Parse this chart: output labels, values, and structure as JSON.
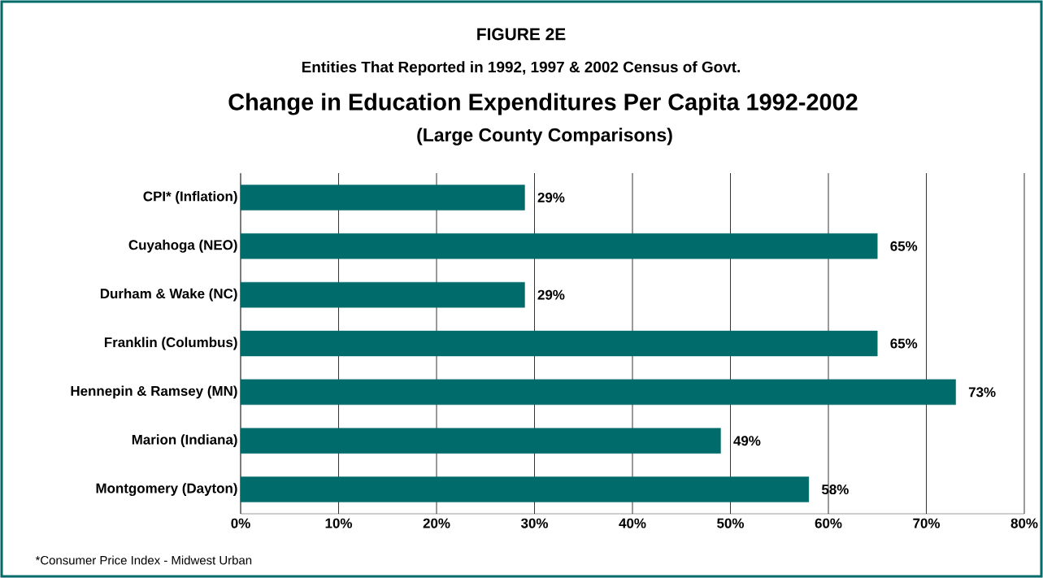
{
  "chart_data": {
    "type": "bar",
    "orientation": "horizontal",
    "title": "Change in Education Expenditures Per Capita 1992-2002",
    "subtitle": "(Large County Comparisons)",
    "annotations": [
      "FIGURE 2E",
      "Entities That Reported in 1992, 1997 & 2002 Census of Govt.",
      "*Consumer Price Index - Midwest Urban"
    ],
    "categories": [
      "CPI* (Inflation)",
      "Cuyahoga (NEO)",
      "Durham & Wake (NC)",
      "Franklin (Columbus)",
      "Hennepin & Ramsey (MN)",
      "Marion (Indiana)",
      "Montgomery (Dayton)"
    ],
    "values": [
      29,
      65,
      29,
      65,
      73,
      49,
      58
    ],
    "value_labels": [
      "29%",
      "65%",
      "29%",
      "65%",
      "73%",
      "49%",
      "58%"
    ],
    "color": "#006b6b",
    "xlim": [
      0,
      80
    ],
    "xticks": [
      {
        "value": 0,
        "label": "0%"
      },
      {
        "value": 10,
        "label": "10%"
      },
      {
        "value": 20,
        "label": "20%"
      },
      {
        "value": 30,
        "label": "30%"
      },
      {
        "value": 40,
        "label": "40%"
      },
      {
        "value": 50,
        "label": "50%"
      },
      {
        "value": 60,
        "label": "60%"
      },
      {
        "value": 70,
        "label": "70%"
      },
      {
        "value": 80,
        "label": "80%"
      }
    ],
    "grid": "x"
  }
}
